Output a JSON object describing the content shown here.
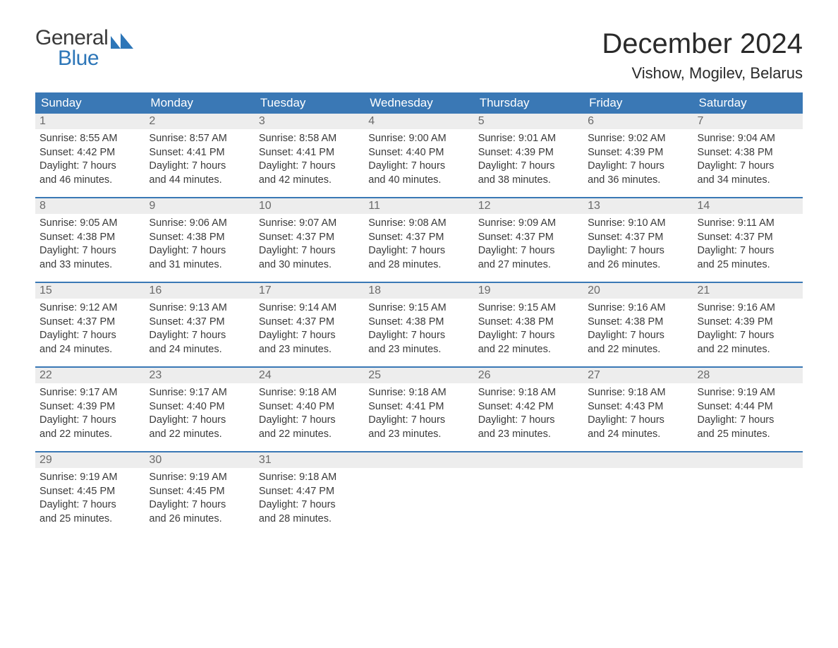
{
  "brand": {
    "word1": "General",
    "word2": "Blue",
    "mark_color": "#2d76b8",
    "text_gray": "#3a3a3a"
  },
  "title": "December 2024",
  "location": "Vishow, Mogilev, Belarus",
  "colors": {
    "header_bg": "#3a78b5",
    "header_text": "#ffffff",
    "daynum_bg": "#ededed",
    "daynum_text": "#6a6a6a",
    "body_text": "#3a3a3a",
    "week_border": "#3a78b5",
    "page_bg": "#ffffff"
  },
  "day_headers": [
    "Sunday",
    "Monday",
    "Tuesday",
    "Wednesday",
    "Thursday",
    "Friday",
    "Saturday"
  ],
  "weeks": [
    [
      {
        "num": "1",
        "sunrise": "Sunrise: 8:55 AM",
        "sunset": "Sunset: 4:42 PM",
        "day1": "Daylight: 7 hours",
        "day2": "and 46 minutes."
      },
      {
        "num": "2",
        "sunrise": "Sunrise: 8:57 AM",
        "sunset": "Sunset: 4:41 PM",
        "day1": "Daylight: 7 hours",
        "day2": "and 44 minutes."
      },
      {
        "num": "3",
        "sunrise": "Sunrise: 8:58 AM",
        "sunset": "Sunset: 4:41 PM",
        "day1": "Daylight: 7 hours",
        "day2": "and 42 minutes."
      },
      {
        "num": "4",
        "sunrise": "Sunrise: 9:00 AM",
        "sunset": "Sunset: 4:40 PM",
        "day1": "Daylight: 7 hours",
        "day2": "and 40 minutes."
      },
      {
        "num": "5",
        "sunrise": "Sunrise: 9:01 AM",
        "sunset": "Sunset: 4:39 PM",
        "day1": "Daylight: 7 hours",
        "day2": "and 38 minutes."
      },
      {
        "num": "6",
        "sunrise": "Sunrise: 9:02 AM",
        "sunset": "Sunset: 4:39 PM",
        "day1": "Daylight: 7 hours",
        "day2": "and 36 minutes."
      },
      {
        "num": "7",
        "sunrise": "Sunrise: 9:04 AM",
        "sunset": "Sunset: 4:38 PM",
        "day1": "Daylight: 7 hours",
        "day2": "and 34 minutes."
      }
    ],
    [
      {
        "num": "8",
        "sunrise": "Sunrise: 9:05 AM",
        "sunset": "Sunset: 4:38 PM",
        "day1": "Daylight: 7 hours",
        "day2": "and 33 minutes."
      },
      {
        "num": "9",
        "sunrise": "Sunrise: 9:06 AM",
        "sunset": "Sunset: 4:38 PM",
        "day1": "Daylight: 7 hours",
        "day2": "and 31 minutes."
      },
      {
        "num": "10",
        "sunrise": "Sunrise: 9:07 AM",
        "sunset": "Sunset: 4:37 PM",
        "day1": "Daylight: 7 hours",
        "day2": "and 30 minutes."
      },
      {
        "num": "11",
        "sunrise": "Sunrise: 9:08 AM",
        "sunset": "Sunset: 4:37 PM",
        "day1": "Daylight: 7 hours",
        "day2": "and 28 minutes."
      },
      {
        "num": "12",
        "sunrise": "Sunrise: 9:09 AM",
        "sunset": "Sunset: 4:37 PM",
        "day1": "Daylight: 7 hours",
        "day2": "and 27 minutes."
      },
      {
        "num": "13",
        "sunrise": "Sunrise: 9:10 AM",
        "sunset": "Sunset: 4:37 PM",
        "day1": "Daylight: 7 hours",
        "day2": "and 26 minutes."
      },
      {
        "num": "14",
        "sunrise": "Sunrise: 9:11 AM",
        "sunset": "Sunset: 4:37 PM",
        "day1": "Daylight: 7 hours",
        "day2": "and 25 minutes."
      }
    ],
    [
      {
        "num": "15",
        "sunrise": "Sunrise: 9:12 AM",
        "sunset": "Sunset: 4:37 PM",
        "day1": "Daylight: 7 hours",
        "day2": "and 24 minutes."
      },
      {
        "num": "16",
        "sunrise": "Sunrise: 9:13 AM",
        "sunset": "Sunset: 4:37 PM",
        "day1": "Daylight: 7 hours",
        "day2": "and 24 minutes."
      },
      {
        "num": "17",
        "sunrise": "Sunrise: 9:14 AM",
        "sunset": "Sunset: 4:37 PM",
        "day1": "Daylight: 7 hours",
        "day2": "and 23 minutes."
      },
      {
        "num": "18",
        "sunrise": "Sunrise: 9:15 AM",
        "sunset": "Sunset: 4:38 PM",
        "day1": "Daylight: 7 hours",
        "day2": "and 23 minutes."
      },
      {
        "num": "19",
        "sunrise": "Sunrise: 9:15 AM",
        "sunset": "Sunset: 4:38 PM",
        "day1": "Daylight: 7 hours",
        "day2": "and 22 minutes."
      },
      {
        "num": "20",
        "sunrise": "Sunrise: 9:16 AM",
        "sunset": "Sunset: 4:38 PM",
        "day1": "Daylight: 7 hours",
        "day2": "and 22 minutes."
      },
      {
        "num": "21",
        "sunrise": "Sunrise: 9:16 AM",
        "sunset": "Sunset: 4:39 PM",
        "day1": "Daylight: 7 hours",
        "day2": "and 22 minutes."
      }
    ],
    [
      {
        "num": "22",
        "sunrise": "Sunrise: 9:17 AM",
        "sunset": "Sunset: 4:39 PM",
        "day1": "Daylight: 7 hours",
        "day2": "and 22 minutes."
      },
      {
        "num": "23",
        "sunrise": "Sunrise: 9:17 AM",
        "sunset": "Sunset: 4:40 PM",
        "day1": "Daylight: 7 hours",
        "day2": "and 22 minutes."
      },
      {
        "num": "24",
        "sunrise": "Sunrise: 9:18 AM",
        "sunset": "Sunset: 4:40 PM",
        "day1": "Daylight: 7 hours",
        "day2": "and 22 minutes."
      },
      {
        "num": "25",
        "sunrise": "Sunrise: 9:18 AM",
        "sunset": "Sunset: 4:41 PM",
        "day1": "Daylight: 7 hours",
        "day2": "and 23 minutes."
      },
      {
        "num": "26",
        "sunrise": "Sunrise: 9:18 AM",
        "sunset": "Sunset: 4:42 PM",
        "day1": "Daylight: 7 hours",
        "day2": "and 23 minutes."
      },
      {
        "num": "27",
        "sunrise": "Sunrise: 9:18 AM",
        "sunset": "Sunset: 4:43 PM",
        "day1": "Daylight: 7 hours",
        "day2": "and 24 minutes."
      },
      {
        "num": "28",
        "sunrise": "Sunrise: 9:19 AM",
        "sunset": "Sunset: 4:44 PM",
        "day1": "Daylight: 7 hours",
        "day2": "and 25 minutes."
      }
    ],
    [
      {
        "num": "29",
        "sunrise": "Sunrise: 9:19 AM",
        "sunset": "Sunset: 4:45 PM",
        "day1": "Daylight: 7 hours",
        "day2": "and 25 minutes."
      },
      {
        "num": "30",
        "sunrise": "Sunrise: 9:19 AM",
        "sunset": "Sunset: 4:45 PM",
        "day1": "Daylight: 7 hours",
        "day2": "and 26 minutes."
      },
      {
        "num": "31",
        "sunrise": "Sunrise: 9:18 AM",
        "sunset": "Sunset: 4:47 PM",
        "day1": "Daylight: 7 hours",
        "day2": "and 28 minutes."
      },
      {
        "empty": true
      },
      {
        "empty": true
      },
      {
        "empty": true
      },
      {
        "empty": true
      }
    ]
  ]
}
